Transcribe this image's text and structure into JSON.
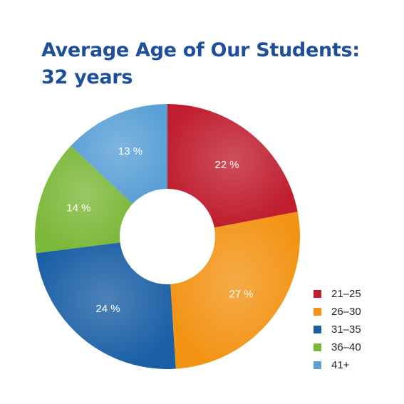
{
  "title": {
    "line1": "Average Age of Our Students:",
    "line2": "32 years"
  },
  "chart_data": {
    "type": "pie",
    "variant": "donut",
    "title": "Average Age of Our Students: 32 years",
    "categories": [
      "21–25",
      "26–30",
      "31–35",
      "36–40",
      "41+"
    ],
    "values": [
      22,
      27,
      24,
      14,
      13
    ],
    "labels": [
      "22 %",
      "27 %",
      "24 %",
      "14 %",
      "13 %"
    ],
    "colors": [
      "#c01d2e",
      "#f39314",
      "#1b5fa6",
      "#7cb83a",
      "#5aa0d6"
    ],
    "legend_position": "right"
  }
}
